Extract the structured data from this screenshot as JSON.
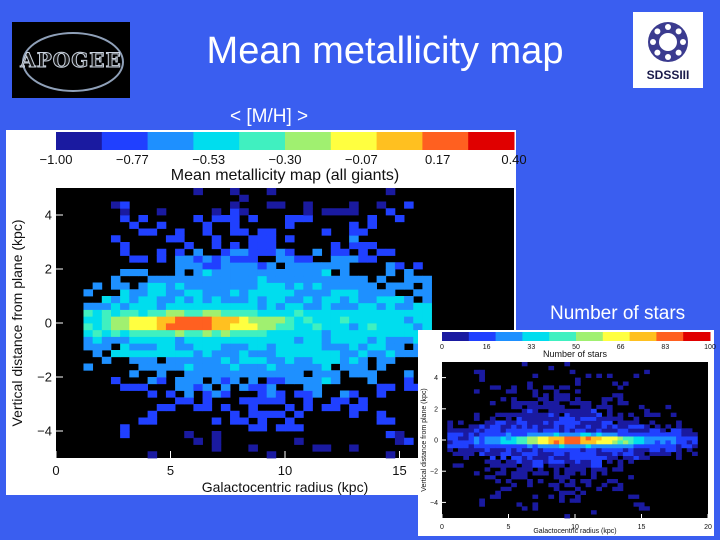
{
  "slide": {
    "title": "Mean metallicity map",
    "subtitle": "< [M/H] >",
    "inset_label": "Number of stars",
    "apogee_logo_text": "APOGEE",
    "sdss_logo_text": "SDSSIII",
    "background_color": "#3a5ef0"
  },
  "chart_data": [
    {
      "type": "heatmap",
      "title": "Mean metallicity map (all giants)",
      "xlabel": "Galactocentric radius (kpc)",
      "ylabel": "Vertical distance from plane (kpc)",
      "xlim": [
        0,
        20
      ],
      "ylim": [
        -5,
        5
      ],
      "xticks": [
        0,
        5,
        10,
        15
      ],
      "yticks": [
        -4,
        -2,
        0,
        2,
        4
      ],
      "colorbar": {
        "range": [
          -1.0,
          0.4
        ],
        "ticks": [
          "−1.00",
          "−0.77",
          "−0.53",
          "−0.30",
          "−0.07",
          "0.17",
          "0.40"
        ],
        "colors": [
          "#000000",
          "#1a1aa0",
          "#2040ff",
          "#1e90ff",
          "#00ddee",
          "#40f0c0",
          "#a0f070",
          "#ffff40",
          "#ffc020",
          "#ff6020",
          "#e00000"
        ]
      },
      "summary": {
        "peak_mean_metallicity_region": {
          "r_kpc": [
            4,
            8
          ],
          "z_kpc": [
            -0.3,
            0.3
          ],
          "value": 0.3
        },
        "disk_plane_value": 0.0,
        "high_z_value": -0.5,
        "extent_r_kpc": [
          1,
          16
        ],
        "extent_z_kpc": [
          -4.5,
          4.5
        ]
      }
    },
    {
      "type": "heatmap",
      "title": "Number of stars",
      "xlabel": "Galactocentric radius (kpc)",
      "ylabel": "Vertical distance from plane (kpc)",
      "xlim": [
        0,
        20
      ],
      "ylim": [
        -5,
        5
      ],
      "xticks": [
        0,
        5,
        10,
        15,
        20
      ],
      "yticks": [
        -4,
        -2,
        0,
        2,
        4
      ],
      "colorbar": {
        "range": [
          0,
          100
        ],
        "ticks": [
          "0",
          "16",
          "33",
          "50",
          "66",
          "83",
          "100"
        ],
        "colors": [
          "#000000",
          "#1a1aa0",
          "#2040ff",
          "#1e90ff",
          "#00ddee",
          "#40f0c0",
          "#a0f070",
          "#ffff40",
          "#ffc020",
          "#ff6020",
          "#e00000"
        ]
      },
      "summary": {
        "peak_count_region": {
          "r_kpc": [
            5,
            14
          ],
          "z_kpc": [
            -0.3,
            0.3
          ],
          "value": 100
        },
        "extent_r_kpc": [
          0,
          19
        ],
        "extent_z_kpc": [
          -4.5,
          4.5
        ]
      }
    }
  ]
}
